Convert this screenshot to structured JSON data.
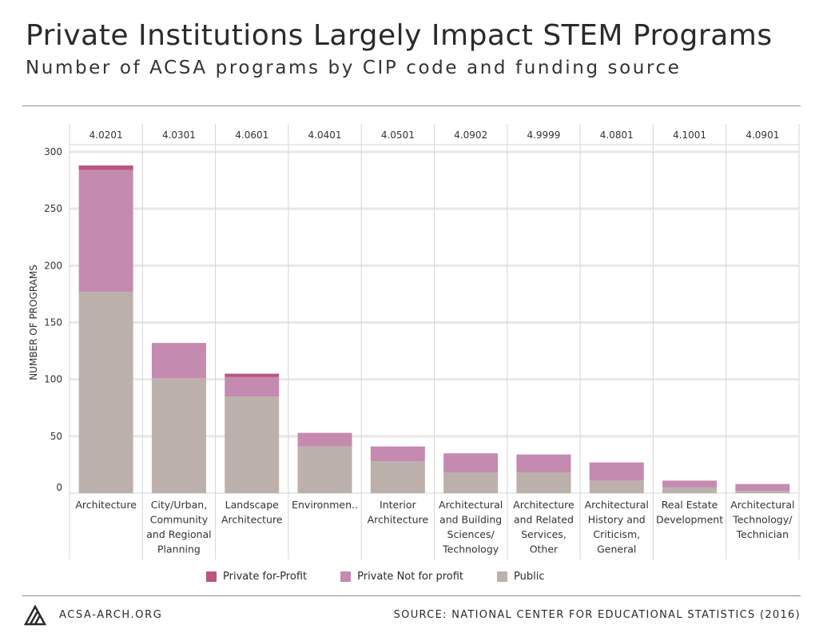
{
  "header": {
    "title": "Private Institutions Largely Impact STEM Programs",
    "subtitle": "Number of ACSA programs by CIP code and funding source"
  },
  "footer": {
    "site": "ACSA-ARCH.ORG",
    "source": "SOURCE: NATIONAL CENTER FOR EDUCATIONAL STATISTICS (2016)"
  },
  "colors": {
    "private_for_profit": "#b9577f",
    "private_not_for_profit": "#c58ab0",
    "public": "#bcb1aa",
    "grid": "#e8e8e8",
    "divider": "#d6d6d6"
  },
  "chart_data": {
    "type": "bar",
    "stacked": true,
    "ylabel": "NUMBER OF PROGRAMS",
    "ylim": [
      0,
      300
    ],
    "yticks": [
      0,
      50,
      100,
      150,
      200,
      250,
      300
    ],
    "grid": true,
    "legend_position": "bottom",
    "cip_codes": [
      "4.0201",
      "4.0301",
      "4.0601",
      "4.0401",
      "4.0501",
      "4.0902",
      "4.9999",
      "4.0801",
      "4.1001",
      "4.0901"
    ],
    "categories": [
      "Architecture",
      "City/Urban, Community and Regional Planning",
      "Landscape Architecture",
      "Environmen..",
      "Interior Architecture",
      "Architectural and Building Sciences/ Technology",
      "Architecture and Related Services, Other",
      "Architectural History and Criticism, General",
      "Real Estate Development",
      "Architectural Technology/ Technician"
    ],
    "category_lines": [
      [
        "Architecture"
      ],
      [
        "City/Urban,",
        "Community",
        "and Regional",
        "Planning"
      ],
      [
        "Landscape",
        "Architecture"
      ],
      [
        "Environmen.."
      ],
      [
        "Interior",
        "Architecture"
      ],
      [
        "Architectural",
        "and Building",
        "Sciences/",
        "Technology"
      ],
      [
        "Architecture",
        "and Related",
        "Services,",
        "Other"
      ],
      [
        "Architectural",
        "History and",
        "Criticism,",
        "General"
      ],
      [
        "Real Estate",
        "Development"
      ],
      [
        "Architectural",
        "Technology/",
        "Technician"
      ]
    ],
    "series": [
      {
        "name": "Public",
        "values": [
          177,
          101,
          85,
          41,
          28,
          18,
          18,
          11,
          5,
          2
        ]
      },
      {
        "name": "Private Not for profit",
        "values": [
          107,
          31,
          17,
          12,
          13,
          17,
          16,
          16,
          6,
          6
        ]
      },
      {
        "name": "Private for-Profit",
        "values": [
          4,
          0,
          3,
          0,
          0,
          0,
          0,
          0,
          0,
          0
        ]
      }
    ],
    "legend_order": [
      "Private for-Profit",
      "Private Not for profit",
      "Public"
    ]
  }
}
